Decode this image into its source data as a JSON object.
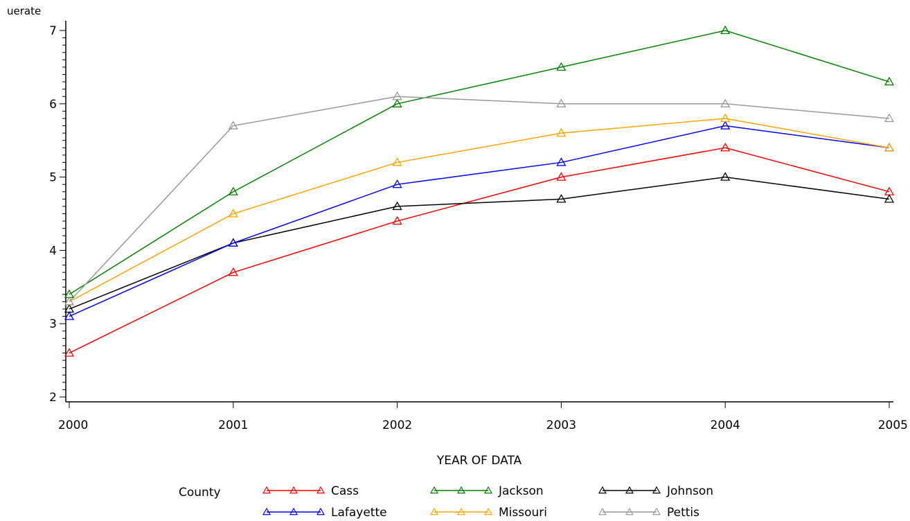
{
  "chart_data": {
    "type": "line",
    "ylabel": "uerate",
    "xlabel": "YEAR OF DATA",
    "x": [
      2000,
      2001,
      2002,
      2003,
      2004,
      2005
    ],
    "ylim": [
      2,
      7
    ],
    "yticks": [
      2,
      3,
      4,
      5,
      6,
      7
    ],
    "grid": false,
    "marker": "triangle",
    "legend": {
      "title": "County",
      "placement": "bottom"
    },
    "series": [
      {
        "name": "Cass",
        "color": "#ff0000",
        "values": [
          2.6,
          3.7,
          4.4,
          5.0,
          5.4,
          4.8
        ]
      },
      {
        "name": "Jackson",
        "color": "#008000",
        "values": [
          3.4,
          4.8,
          6.0,
          6.5,
          7.0,
          6.3
        ]
      },
      {
        "name": "Johnson",
        "color": "#000000",
        "values": [
          3.2,
          4.1,
          4.6,
          4.7,
          5.0,
          4.7
        ]
      },
      {
        "name": "Lafayette",
        "color": "#0000ff",
        "values": [
          3.1,
          4.1,
          4.9,
          5.2,
          5.7,
          5.4
        ]
      },
      {
        "name": "Missouri",
        "color": "#ffa500",
        "values": [
          3.3,
          4.5,
          5.2,
          5.6,
          5.8,
          5.4
        ]
      },
      {
        "name": "Pettis",
        "color": "#999999",
        "values": [
          3.3,
          5.7,
          6.1,
          6.0,
          6.0,
          5.8
        ]
      }
    ]
  }
}
